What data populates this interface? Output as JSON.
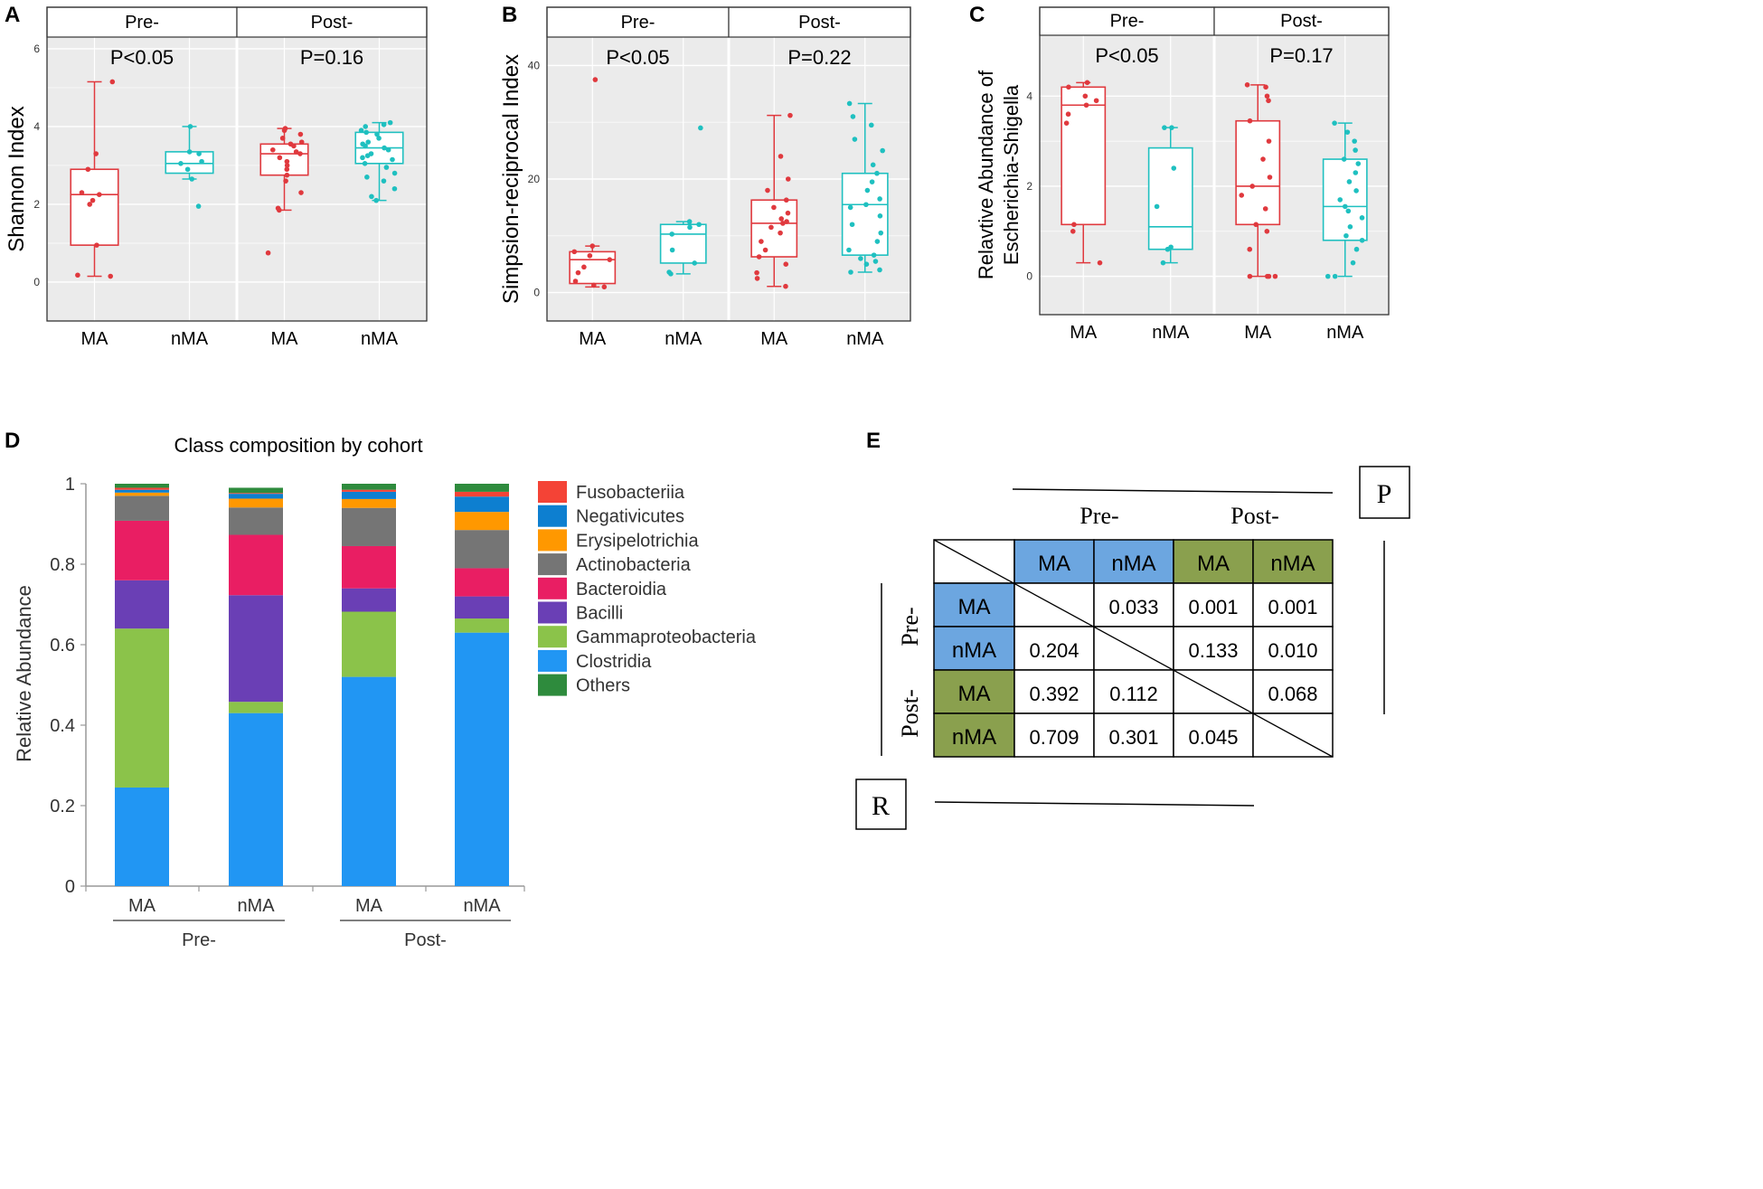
{
  "colors": {
    "ma": "#e0393e",
    "nma": "#1fc0c0",
    "panel_bg": "#ebebeb",
    "grid": "#ffffff",
    "blue_cell": "#6ca6e0",
    "green_cell": "#8aa04e"
  },
  "chart_data": [
    {
      "id": "A",
      "type": "boxplot",
      "panel_label": "A",
      "ylabel": "Shannon Index",
      "ylim": [
        -1,
        6.3
      ],
      "yticks": [
        0,
        2,
        4,
        6
      ],
      "facets": [
        "Pre-",
        "Post-"
      ],
      "pvalues": [
        "P<0.05",
        "P=0.16"
      ],
      "categories": [
        "MA",
        "nMA",
        "MA",
        "nMA"
      ],
      "boxes": [
        {
          "facet": "Pre-",
          "group": "MA",
          "q1": 0.95,
          "median": 2.25,
          "q3": 2.9,
          "whisker_low": 0.15,
          "whisker_high": 5.15,
          "points": [
            0.15,
            0.18,
            0.95,
            2.0,
            2.1,
            2.25,
            2.3,
            2.9,
            3.3,
            5.15
          ]
        },
        {
          "facet": "Pre-",
          "group": "nMA",
          "q1": 2.8,
          "median": 3.05,
          "q3": 3.35,
          "whisker_low": 2.65,
          "whisker_high": 4.0,
          "points": [
            1.95,
            2.65,
            2.9,
            3.05,
            3.1,
            3.3,
            3.35,
            4.0
          ]
        },
        {
          "facet": "Post-",
          "group": "MA",
          "q1": 2.75,
          "median": 3.3,
          "q3": 3.55,
          "whisker_low": 1.85,
          "whisker_high": 3.95,
          "points": [
            0.75,
            1.85,
            1.9,
            2.3,
            2.6,
            2.75,
            2.9,
            3.0,
            3.1,
            3.2,
            3.3,
            3.35,
            3.4,
            3.5,
            3.55,
            3.6,
            3.7,
            3.8,
            3.9,
            3.95
          ]
        },
        {
          "facet": "Post-",
          "group": "nMA",
          "q1": 3.05,
          "median": 3.45,
          "q3": 3.85,
          "whisker_low": 2.1,
          "whisker_high": 4.1,
          "points": [
            2.1,
            2.2,
            2.4,
            2.6,
            2.8,
            2.95,
            3.05,
            3.15,
            3.2,
            3.3,
            3.4,
            3.45,
            3.5,
            3.55,
            3.6,
            3.7,
            3.8,
            3.85,
            3.9,
            4.0,
            4.05,
            4.1,
            3.25,
            2.7
          ]
        }
      ]
    },
    {
      "id": "B",
      "type": "boxplot",
      "panel_label": "B",
      "ylabel": "Simpsion-reciprocal Index",
      "ylim": [
        -5,
        45
      ],
      "yticks": [
        0,
        20,
        40
      ],
      "facets": [
        "Pre-",
        "Post-"
      ],
      "pvalues": [
        "P<0.05",
        "P=0.22"
      ],
      "categories": [
        "MA",
        "nMA",
        "MA",
        "nMA"
      ],
      "boxes": [
        {
          "facet": "Pre-",
          "group": "MA",
          "q1": 1.6,
          "median": 5.8,
          "q3": 7.2,
          "whisker_low": 1.0,
          "whisker_high": 8.2,
          "points": [
            1.0,
            1.3,
            2.0,
            3.5,
            4.5,
            5.8,
            6.5,
            7.2,
            8.2,
            37.5
          ]
        },
        {
          "facet": "Pre-",
          "group": "nMA",
          "q1": 5.2,
          "median": 10.3,
          "q3": 12.0,
          "whisker_low": 3.3,
          "whisker_high": 12.5,
          "points": [
            3.3,
            3.6,
            5.2,
            7.5,
            10.3,
            11.5,
            12.0,
            12.5,
            29.0
          ]
        },
        {
          "facet": "Post-",
          "group": "MA",
          "q1": 6.3,
          "median": 12.2,
          "q3": 16.3,
          "whisker_low": 1.1,
          "whisker_high": 31.2,
          "points": [
            1.1,
            2.5,
            3.5,
            5.0,
            6.3,
            7.5,
            9.0,
            10.5,
            11.5,
            12.2,
            12.5,
            13.0,
            14.0,
            15.0,
            16.3,
            18.0,
            20.0,
            24.0,
            31.2
          ]
        },
        {
          "facet": "Post-",
          "group": "nMA",
          "q1": 6.6,
          "median": 15.5,
          "q3": 21.0,
          "whisker_low": 3.6,
          "whisker_high": 33.3,
          "points": [
            3.6,
            4.0,
            5.0,
            5.5,
            6.0,
            6.6,
            7.5,
            9.0,
            10.5,
            12.0,
            13.5,
            15.0,
            15.5,
            16.5,
            18.0,
            19.5,
            21.0,
            22.5,
            25.0,
            27.0,
            29.5,
            31.0,
            33.3
          ]
        }
      ]
    },
    {
      "id": "C",
      "type": "boxplot",
      "panel_label": "C",
      "ylabel": "Relavtive Abundance of Escherichia-Shigella",
      "ylabel_lines": [
        "Relavtive Abundance of",
        "Escherichia-Shigella"
      ],
      "ylim": [
        -0.85,
        5.35
      ],
      "yticks": [
        0,
        2,
        4
      ],
      "facets": [
        "Pre-",
        "Post-"
      ],
      "pvalues": [
        "P<0.05",
        "P=0.17"
      ],
      "categories": [
        "MA",
        "nMA",
        "MA",
        "nMA"
      ],
      "boxes": [
        {
          "facet": "Pre-",
          "group": "MA",
          "q1": 1.15,
          "median": 3.8,
          "q3": 4.2,
          "whisker_low": 0.3,
          "whisker_high": 4.3,
          "points": [
            0.3,
            1.0,
            1.15,
            3.4,
            3.6,
            3.8,
            3.9,
            4.0,
            4.2,
            4.3
          ]
        },
        {
          "facet": "Pre-",
          "group": "nMA",
          "q1": 0.6,
          "median": 1.1,
          "q3": 2.85,
          "whisker_low": 0.3,
          "whisker_high": 3.3,
          "points": [
            0.3,
            0.6,
            0.65,
            1.55,
            2.4,
            3.3,
            3.3
          ]
        },
        {
          "facet": "Post-",
          "group": "MA",
          "q1": 1.15,
          "median": 2.0,
          "q3": 3.45,
          "whisker_low": 0.0,
          "whisker_high": 4.25,
          "points": [
            0.0,
            0.0,
            0.0,
            0.0,
            0.6,
            1.0,
            1.15,
            1.5,
            1.8,
            2.0,
            2.2,
            2.6,
            3.0,
            3.45,
            3.9,
            4.0,
            4.2,
            4.25
          ]
        },
        {
          "facet": "Post-",
          "group": "nMA",
          "q1": 0.8,
          "median": 1.55,
          "q3": 2.6,
          "whisker_low": 0.0,
          "whisker_high": 3.4,
          "points": [
            0.0,
            0.0,
            0.3,
            0.6,
            0.8,
            0.9,
            1.1,
            1.3,
            1.45,
            1.55,
            1.7,
            1.9,
            2.1,
            2.3,
            2.5,
            2.6,
            2.8,
            3.0,
            3.2,
            3.4
          ]
        }
      ]
    },
    {
      "id": "D",
      "type": "stacked_bar",
      "panel_label": "D",
      "title": "Class composition by cohort",
      "ylabel": "Relative Abundance",
      "ylim": [
        0,
        1
      ],
      "yticks": [
        "0",
        "0.2",
        "0.4",
        "0.6",
        "0.8",
        "1"
      ],
      "categories": [
        "MA",
        "nMA",
        "MA",
        "nMA"
      ],
      "groups": [
        {
          "label": "Pre-",
          "categories": [
            0,
            1
          ]
        },
        {
          "label": "Post-",
          "categories": [
            2,
            3
          ]
        }
      ],
      "legend_position": "right",
      "series": [
        {
          "name": "Clostridia",
          "color": "#2196f3",
          "values": [
            0.245,
            0.43,
            0.52,
            0.63
          ]
        },
        {
          "name": "Gammaproteobacteria",
          "color": "#8bc34a",
          "values": [
            0.395,
            0.028,
            0.162,
            0.035
          ]
        },
        {
          "name": "Bacilli",
          "color": "#6a3fb5",
          "values": [
            0.12,
            0.265,
            0.058,
            0.055
          ]
        },
        {
          "name": "Bacteroidia",
          "color": "#e91e63",
          "values": [
            0.148,
            0.15,
            0.105,
            0.07
          ]
        },
        {
          "name": "Actinobacteria",
          "color": "#757575",
          "values": [
            0.062,
            0.068,
            0.095,
            0.095
          ]
        },
        {
          "name": "Erysipelotrichia",
          "color": "#ff9800",
          "values": [
            0.008,
            0.022,
            0.022,
            0.045
          ]
        },
        {
          "name": "Negativicutes",
          "color": "#0d7fd0",
          "values": [
            0.007,
            0.012,
            0.018,
            0.038
          ]
        },
        {
          "name": "Fusobacteriia",
          "color": "#f44336",
          "values": [
            0.005,
            0.002,
            0.005,
            0.012
          ]
        },
        {
          "name": "Others",
          "color": "#2e8b3d",
          "values": [
            0.01,
            0.013,
            0.015,
            0.02
          ]
        }
      ],
      "legend_order": [
        "Fusobacteriia",
        "Negativicutes",
        "Erysipelotrichia",
        "Actinobacteria",
        "Bacteroidia",
        "Bacilli",
        "Gammaproteobacteria",
        "Clostridia",
        "Others"
      ]
    },
    {
      "id": "E",
      "type": "table",
      "panel_label": "E",
      "upper_label": "P",
      "lower_label": "R",
      "column_groups": [
        "Pre-",
        "Post-"
      ],
      "row_groups": [
        "Pre-",
        "Post-"
      ],
      "columns": [
        "MA",
        "nMA",
        "MA",
        "nMA"
      ],
      "rows": [
        {
          "label": "MA",
          "cells": [
            "",
            "0.033",
            "0.001",
            "0.001"
          ]
        },
        {
          "label": "nMA",
          "cells": [
            "0.204",
            "",
            "0.133",
            "0.010"
          ]
        },
        {
          "label": "MA",
          "cells": [
            "0.392",
            "0.112",
            "",
            "0.068"
          ]
        },
        {
          "label": "nMA",
          "cells": [
            "0.709",
            "0.301",
            "0.045",
            ""
          ]
        }
      ]
    }
  ]
}
